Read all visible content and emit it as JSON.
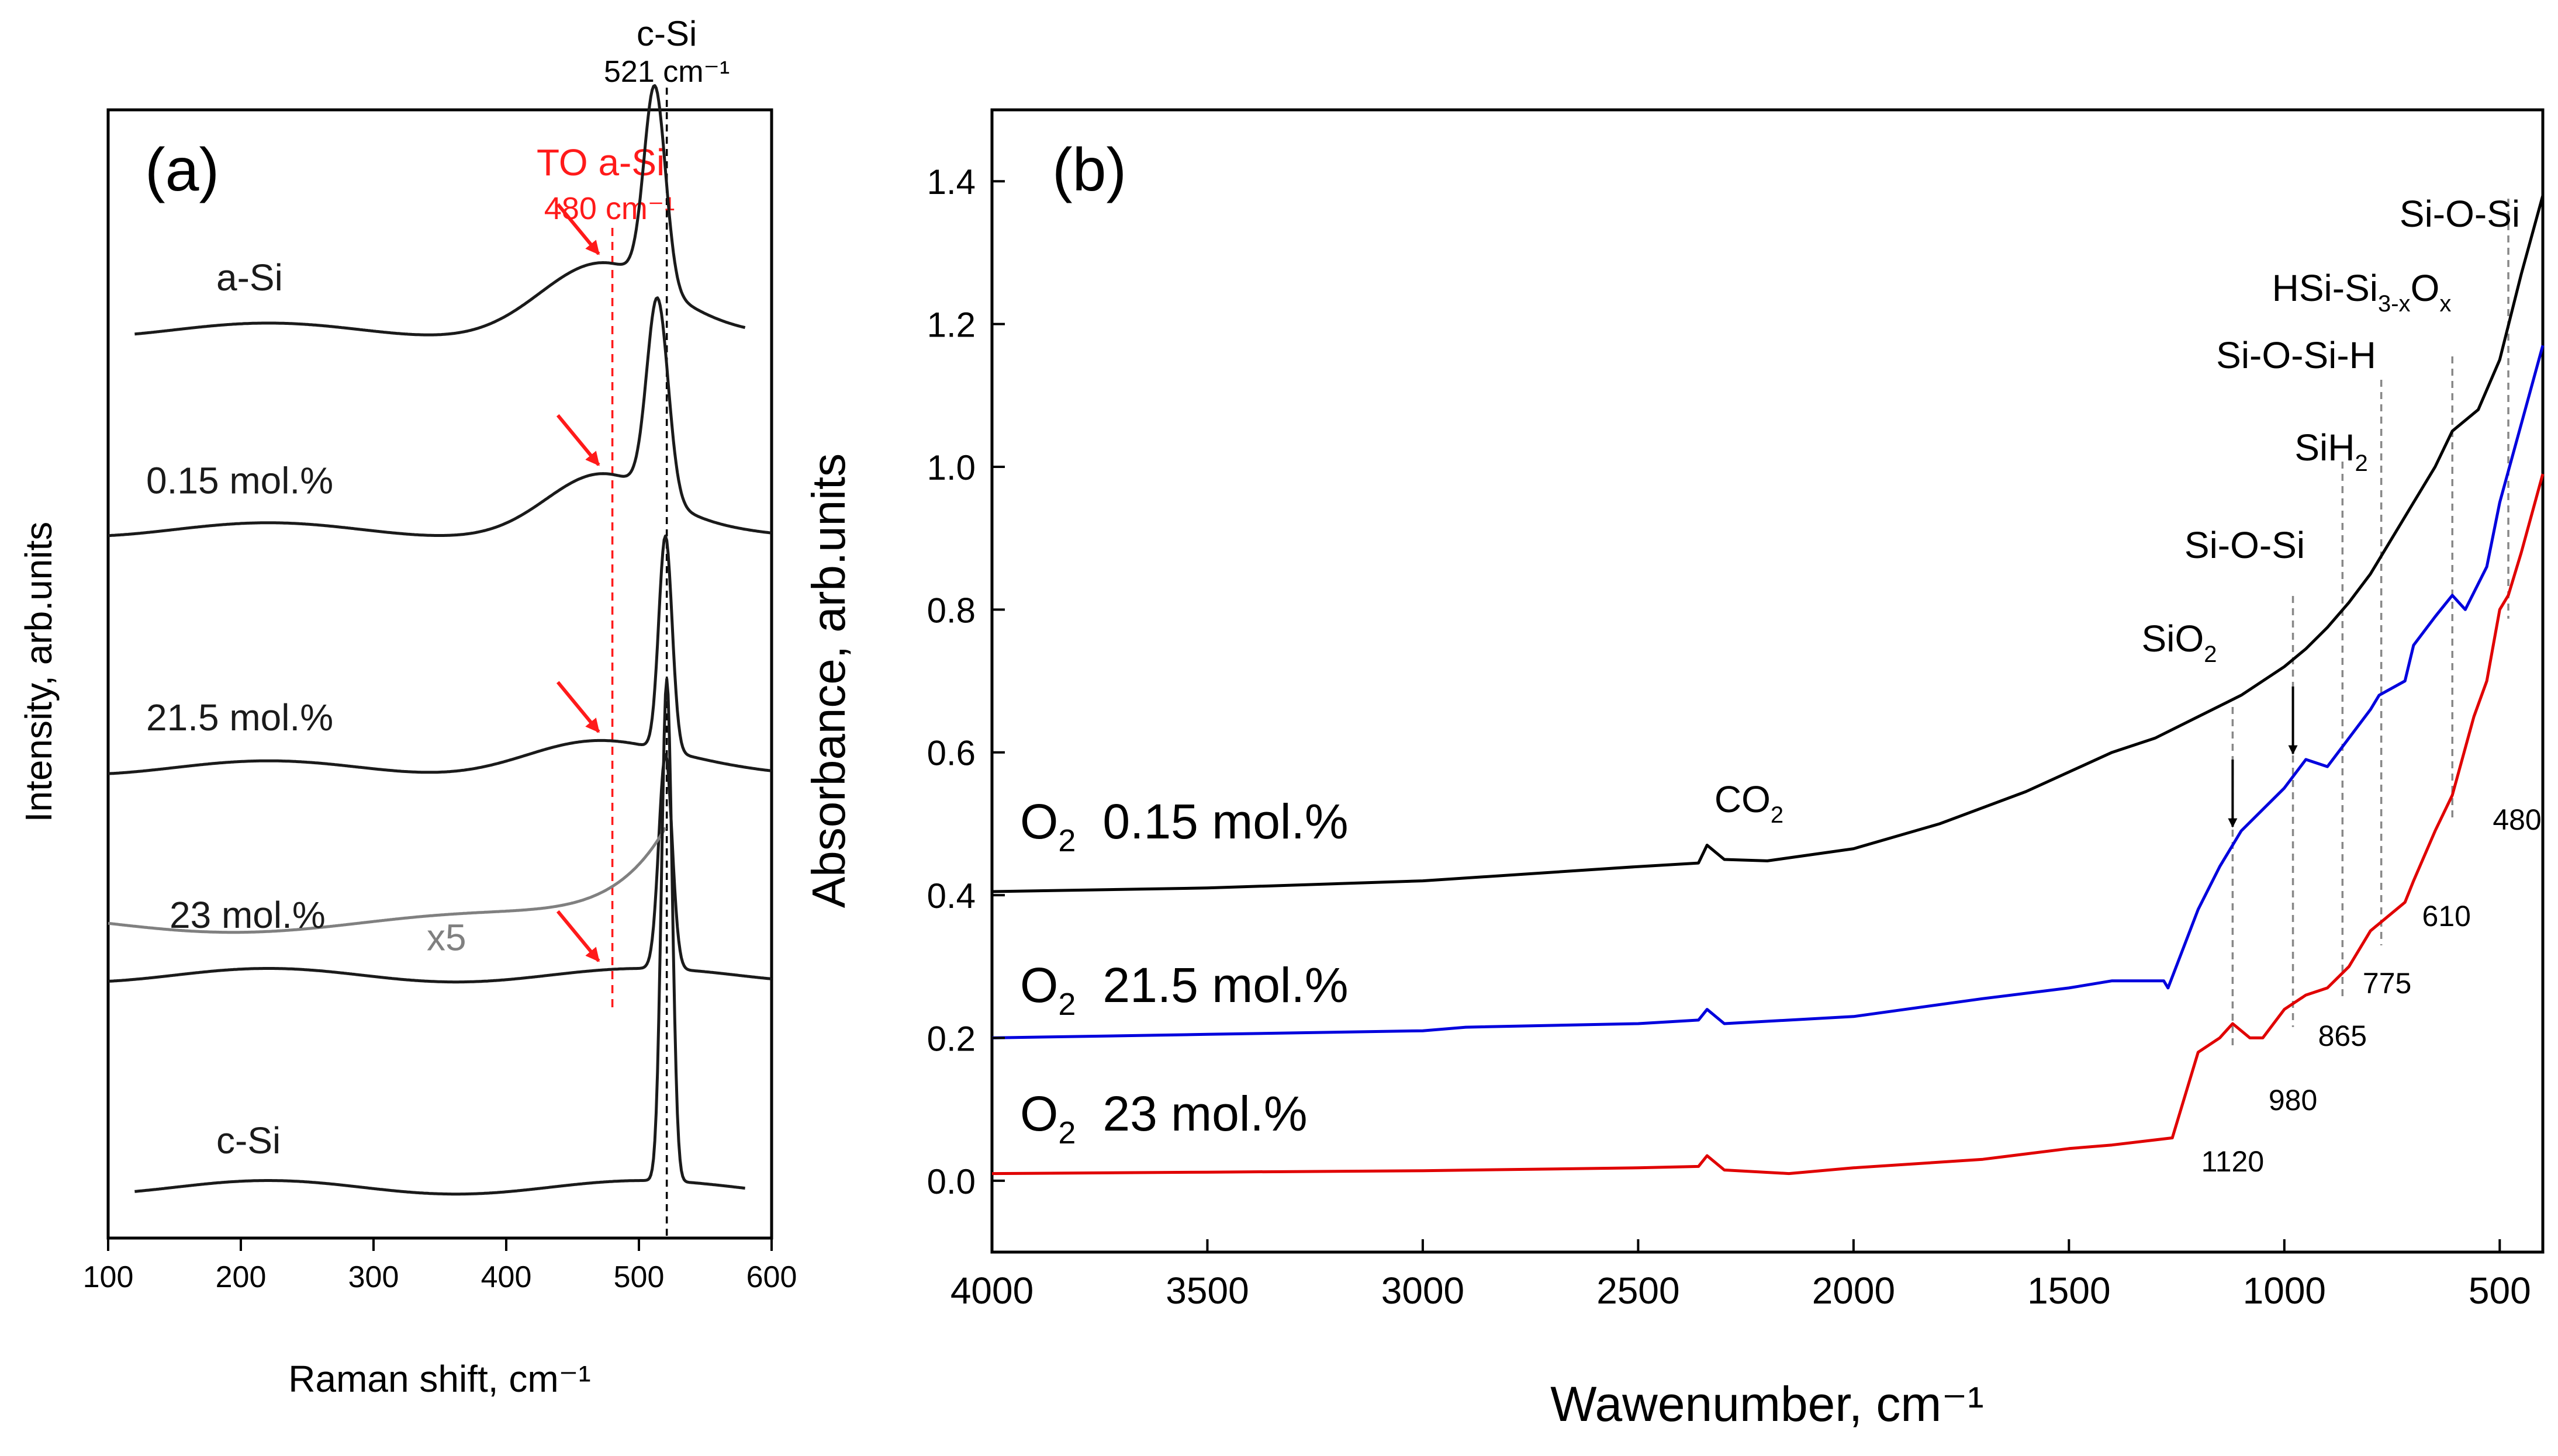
{
  "chart_data": [
    {
      "panel_label": "(a)",
      "type": "line",
      "xlabel": "Raman shift, cm⁻¹",
      "ylabel": "Intensity, arb.units",
      "xlim": [
        100,
        600
      ],
      "xticks": [
        100,
        200,
        300,
        400,
        500,
        600
      ],
      "yticks_shown": false,
      "colors": {
        "main": "#1a1a1a",
        "x5": "#808080",
        "annotation": "#ff1a1a"
      },
      "top_annotation": {
        "line1": "c-Si",
        "line2": "521 cm⁻¹",
        "x": 521
      },
      "red_annotation": {
        "line1": "TO a-Si",
        "line2": "480 cm⁻¹",
        "x": 480
      },
      "series": [
        {
          "name": "a-Si",
          "x_range": [
            120,
            580
          ],
          "baseline": 0.805,
          "peak_x": 512,
          "peak_height": 0.175,
          "peak_width": 8,
          "shoulder_x": 470,
          "shoulder_height": 0.055,
          "shoulder_width": 45
        },
        {
          "name": "0.15 mol.%",
          "x_range": [
            100,
            600
          ],
          "baseline": 0.628,
          "peak_x": 514,
          "peak_height": 0.175,
          "peak_width": 8,
          "shoulder_x": 470,
          "shoulder_height": 0.045,
          "shoulder_width": 40
        },
        {
          "name": "21.5 mol.%",
          "x_range": [
            100,
            600
          ],
          "baseline": 0.417,
          "peak_x": 520,
          "peak_height": 0.19,
          "peak_width": 5,
          "shoulder_x": 460,
          "shoulder_height": 0.02,
          "shoulder_width": 50
        },
        {
          "name": "23 mol.%",
          "x_range": [
            100,
            600
          ],
          "baseline": 0.233,
          "peak_x": 520,
          "peak_height": 0.19,
          "peak_width": 5
        },
        {
          "name": "x5",
          "x_range": [
            100,
            520
          ],
          "baseline": 0.279,
          "end_rise": 0.09
        },
        {
          "name": "c-Si",
          "x_range": [
            120,
            580
          ],
          "baseline": 0.045,
          "peak_x": 521,
          "peak_height": 0.445,
          "peak_width": 4
        }
      ],
      "red_arrows_at_series": [
        "a-Si",
        "0.15 mol.%",
        "21.5 mol.%",
        "23 mol.%"
      ]
    },
    {
      "panel_label": "(b)",
      "type": "line",
      "xlabel": "Wawenumber, cm⁻¹",
      "ylabel": "Absorbance, arb.units",
      "xlim": [
        4000,
        400
      ],
      "ylim": [
        -0.1,
        1.5
      ],
      "xticks": [
        4000,
        3500,
        3000,
        2500,
        2000,
        1500,
        1000,
        500
      ],
      "yticks": [
        "0.0",
        "0.2",
        "0.4",
        "0.6",
        "0.8",
        "1.0",
        "1.2",
        "1.4"
      ],
      "series": [
        {
          "name": "O₂ 0.15 mol.%",
          "color": "#000000",
          "x": [
            4000,
            3500,
            3000,
            2500,
            2360,
            2340,
            2300,
            2200,
            2000,
            1800,
            1600,
            1400,
            1300,
            1200,
            1100,
            1000,
            950,
            900,
            850,
            800,
            750,
            700,
            650,
            610,
            550,
            500,
            450,
            400
          ],
          "y": [
            0.405,
            0.41,
            0.42,
            0.44,
            0.445,
            0.47,
            0.45,
            0.448,
            0.465,
            0.5,
            0.545,
            0.6,
            0.62,
            0.65,
            0.68,
            0.72,
            0.745,
            0.775,
            0.81,
            0.85,
            0.9,
            0.95,
            1.0,
            1.05,
            1.08,
            1.15,
            1.27,
            1.38
          ]
        },
        {
          "name": "O₂ 21.5 mol.%",
          "color": "#0000dd",
          "x": [
            4000,
            3500,
            3000,
            2900,
            2500,
            2360,
            2340,
            2300,
            2000,
            1700,
            1500,
            1400,
            1280,
            1270,
            1200,
            1150,
            1120,
            1100,
            1000,
            950,
            900,
            850,
            800,
            780,
            720,
            700,
            650,
            610,
            580,
            530,
            500,
            450,
            400
          ],
          "y": [
            0.2,
            0.205,
            0.21,
            0.215,
            0.22,
            0.225,
            0.24,
            0.22,
            0.23,
            0.255,
            0.27,
            0.28,
            0.28,
            0.27,
            0.38,
            0.44,
            0.47,
            0.49,
            0.55,
            0.59,
            0.58,
            0.62,
            0.66,
            0.68,
            0.7,
            0.75,
            0.79,
            0.82,
            0.8,
            0.86,
            0.95,
            1.06,
            1.17
          ]
        },
        {
          "name": "O₂ 23 mol.%",
          "color": "#e00000",
          "x": [
            4000,
            3500,
            3000,
            2500,
            2360,
            2340,
            2300,
            2150,
            2000,
            1700,
            1500,
            1400,
            1260,
            1200,
            1150,
            1120,
            1080,
            1050,
            1000,
            950,
            900,
            850,
            800,
            780,
            720,
            700,
            650,
            610,
            560,
            530,
            500,
            480,
            450,
            400
          ],
          "y": [
            0.01,
            0.012,
            0.014,
            0.018,
            0.02,
            0.035,
            0.015,
            0.01,
            0.018,
            0.03,
            0.045,
            0.05,
            0.06,
            0.18,
            0.2,
            0.22,
            0.2,
            0.2,
            0.24,
            0.26,
            0.27,
            0.3,
            0.35,
            0.36,
            0.39,
            0.42,
            0.49,
            0.54,
            0.65,
            0.7,
            0.8,
            0.82,
            0.88,
            0.99
          ]
        }
      ],
      "legend_labels": [
        {
          "series": "O₂ 0.15 mol.%",
          "sub": "2",
          "text": "0.15 mol.%"
        },
        {
          "series": "O₂ 21.5 mol.%",
          "sub": "2",
          "text": "21.5 mol.%"
        },
        {
          "series": "O₂ 23 mol.%",
          "sub": "2",
          "text": "23 mol.%"
        }
      ],
      "peak_labels": [
        "Si-O-Si",
        "HSi-Si₃₋ₓOₓ",
        "Si-O-Si-H",
        "SiH₂",
        "Si-O-Si",
        "SiO₂",
        "CO₂"
      ],
      "reference_lines": [
        {
          "x": 1120,
          "value_label": "1120"
        },
        {
          "x": 980,
          "value_label": "980"
        },
        {
          "x": 865,
          "value_label": "865"
        },
        {
          "x": 775,
          "value_label": "775"
        },
        {
          "x": 610,
          "value_label": "610"
        },
        {
          "x": 480,
          "value_label": "480"
        }
      ]
    }
  ]
}
